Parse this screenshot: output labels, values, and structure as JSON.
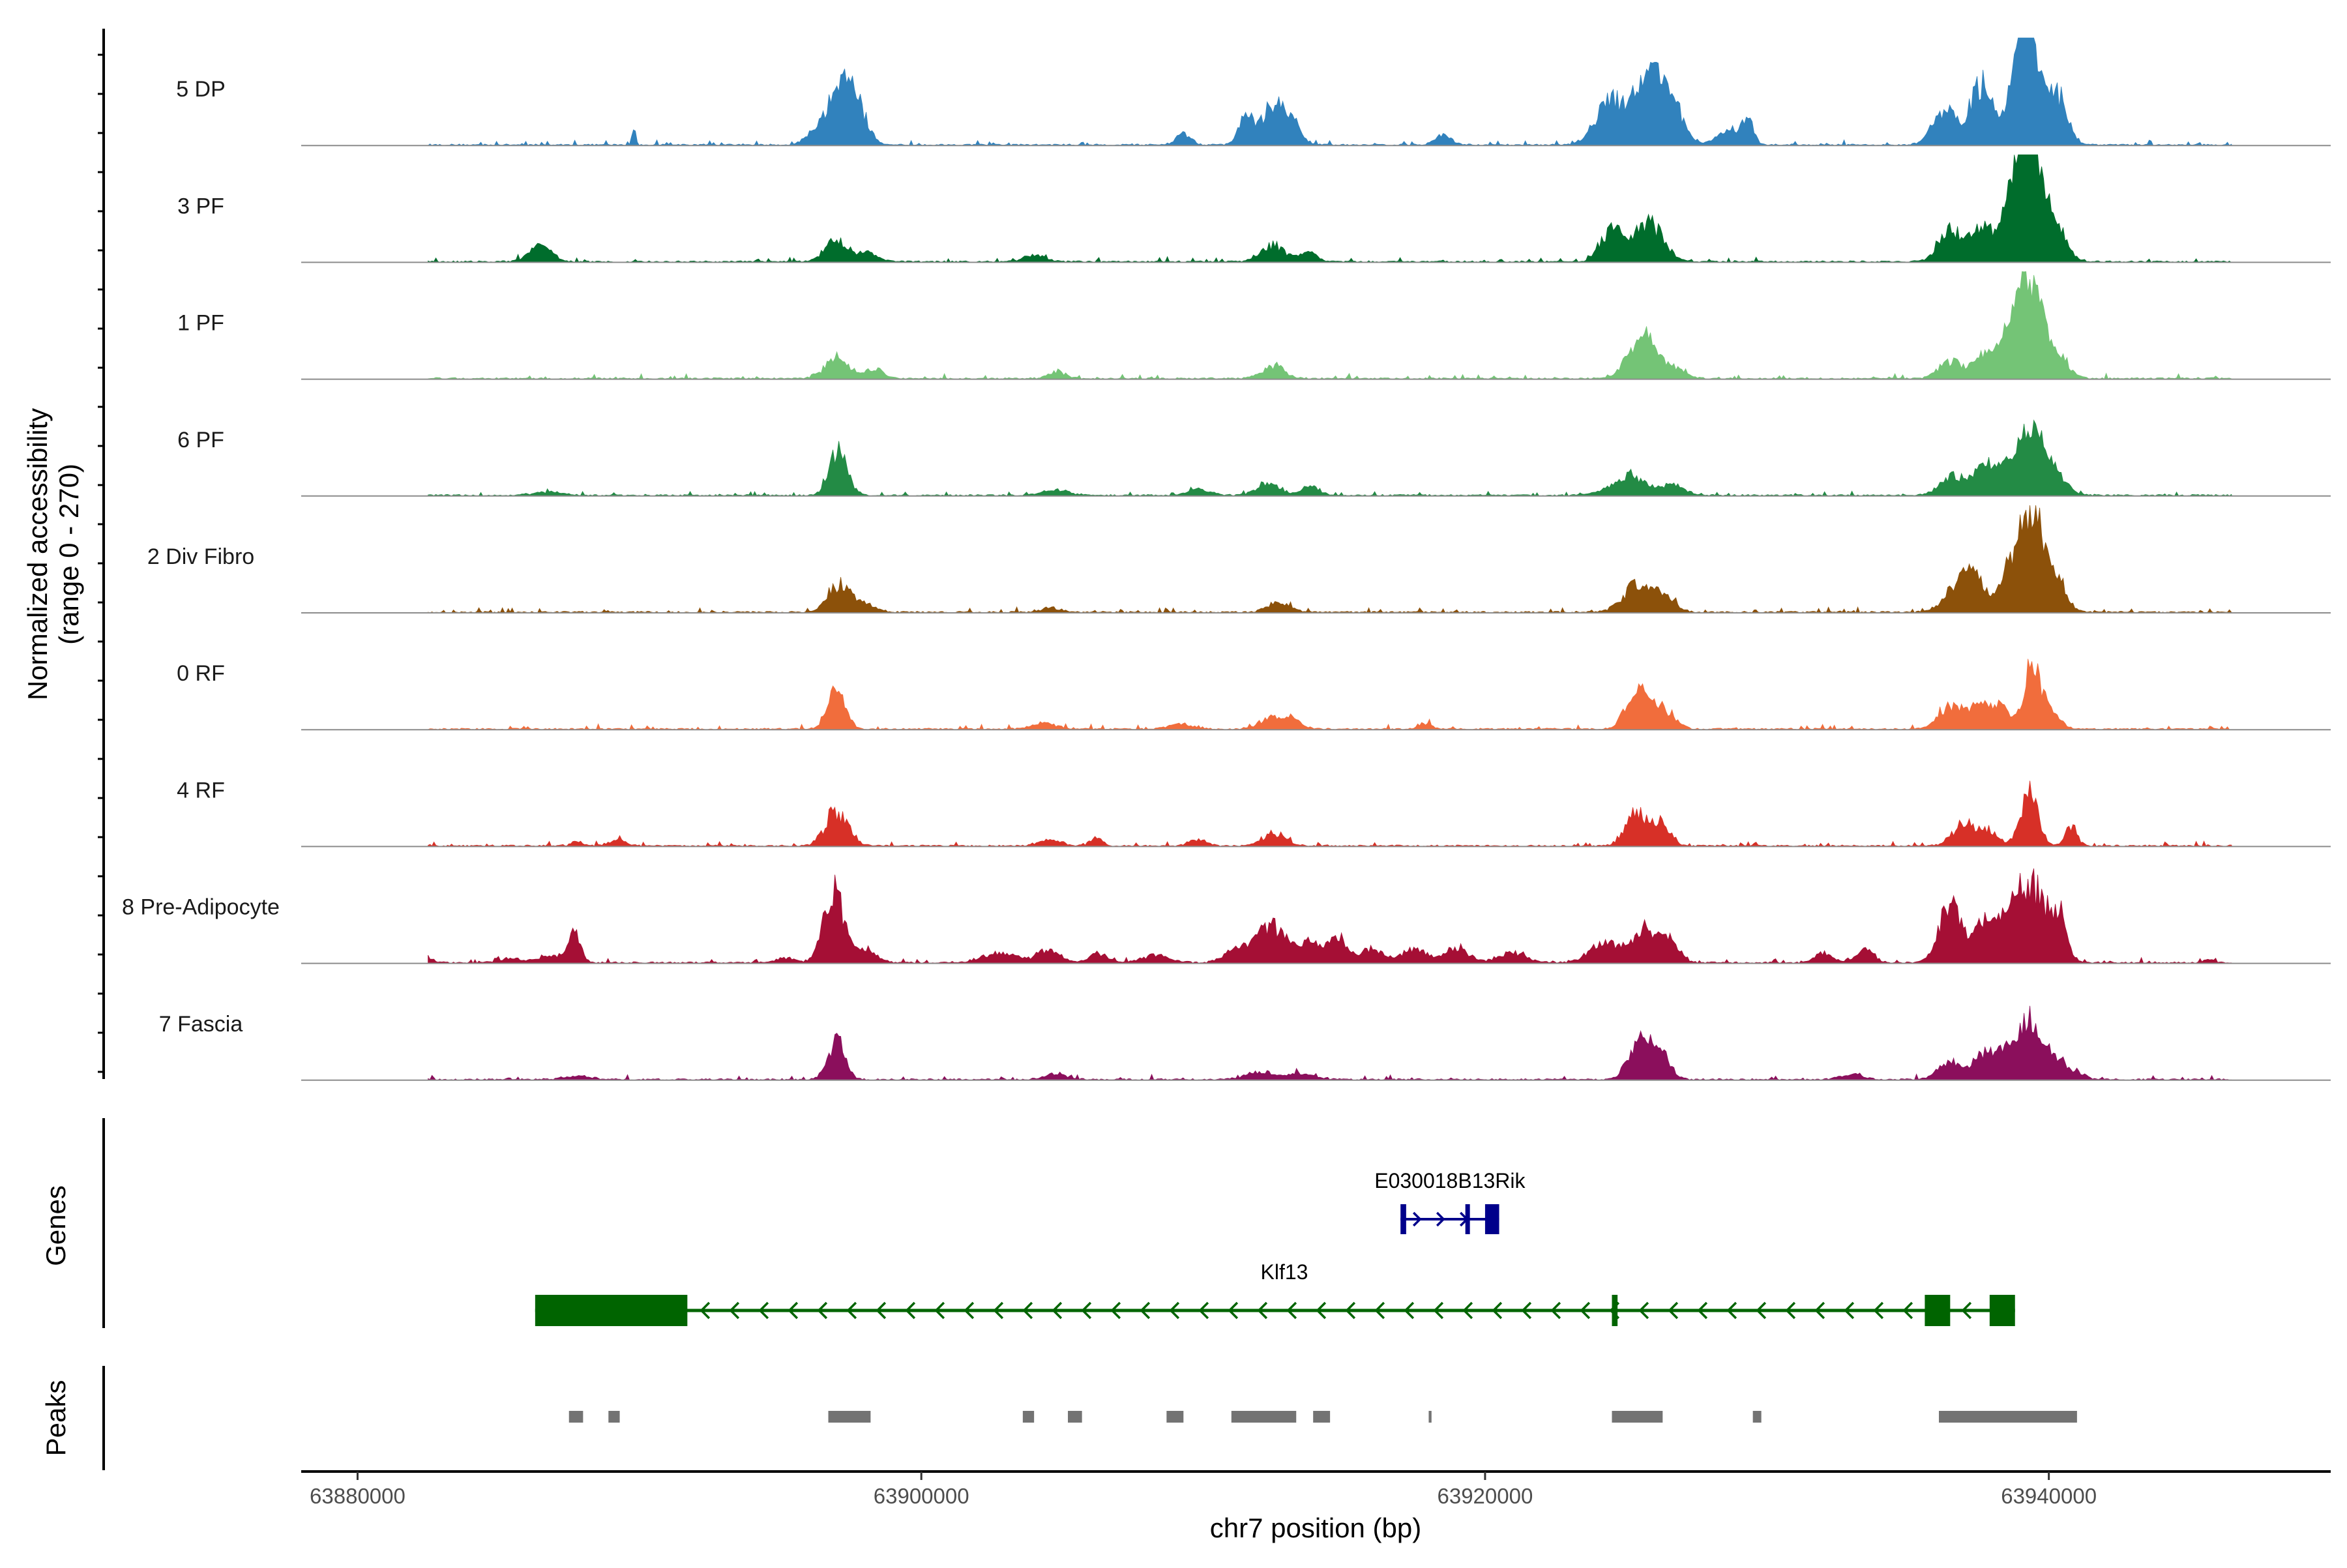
{
  "chart_data": {
    "type": "area",
    "title": "",
    "xlabel": "chr7 position (bp)",
    "ylabel": "Normalized accessibility",
    "ylabel_sub": "(range 0 - 270)",
    "xlim": [
      63878000,
      63950000
    ],
    "ylim": [
      0,
      270
    ],
    "xticks": [
      63880000,
      63900000,
      63920000,
      63940000
    ],
    "xtick_labels": [
      "63880000",
      "63900000",
      "63920000",
      "63940000"
    ],
    "series": [
      {
        "name": "5 DP",
        "color": "#3182bd",
        "peaks": [
          [
            63889800,
            85,
            0.06
          ],
          [
            63896800,
            150,
            0.5
          ],
          [
            63897200,
            120,
            0.25
          ],
          [
            63897700,
            165,
            0.35
          ],
          [
            63909300,
            50,
            0.25
          ],
          [
            63911500,
            110,
            0.25
          ],
          [
            63912500,
            170,
            0.4
          ],
          [
            63913200,
            70,
            0.3
          ],
          [
            63918500,
            40,
            0.3
          ],
          [
            63924400,
            160,
            0.5
          ],
          [
            63925800,
            270,
            0.6
          ],
          [
            63926600,
            110,
            0.4
          ],
          [
            63928600,
            50,
            0.4
          ],
          [
            63929300,
            110,
            0.2
          ],
          [
            63936300,
            140,
            0.4
          ],
          [
            63937600,
            240,
            0.4
          ],
          [
            63939000,
            230,
            0.4
          ],
          [
            63939300,
            340,
            0.4
          ],
          [
            63940300,
            200,
            0.35
          ]
        ]
      },
      {
        "name": "3 PF",
        "color": "#006d2c",
        "peaks": [
          [
            63886500,
            60,
            0.4
          ],
          [
            63897000,
            90,
            0.4
          ],
          [
            63898200,
            35,
            0.3
          ],
          [
            63904000,
            25,
            0.4
          ],
          [
            63912500,
            70,
            0.4
          ],
          [
            63913700,
            40,
            0.3
          ],
          [
            63924500,
            120,
            0.4
          ],
          [
            63925800,
            160,
            0.5
          ],
          [
            63936500,
            125,
            0.4
          ],
          [
            63937600,
            130,
            0.4
          ],
          [
            63938600,
            110,
            0.4
          ],
          [
            63939000,
            230,
            0.4
          ],
          [
            63939400,
            340,
            0.4
          ],
          [
            63940200,
            130,
            0.4
          ]
        ]
      },
      {
        "name": "1 PF",
        "color": "#74c476",
        "peaks": [
          [
            63897000,
            85,
            0.4
          ],
          [
            63898300,
            40,
            0.3
          ],
          [
            63904800,
            30,
            0.3
          ],
          [
            63912500,
            50,
            0.4
          ],
          [
            63925400,
            140,
            0.4
          ],
          [
            63925900,
            90,
            0.3
          ],
          [
            63926600,
            50,
            0.4
          ],
          [
            63936500,
            70,
            0.4
          ],
          [
            63937700,
            90,
            0.4
          ],
          [
            63938500,
            100,
            0.4
          ],
          [
            63939000,
            170,
            0.4
          ],
          [
            63939400,
            280,
            0.4
          ],
          [
            63940200,
            100,
            0.4
          ]
        ]
      },
      {
        "name": "6 PF",
        "color": "#238b45",
        "peaks": [
          [
            63886800,
            15,
            0.5
          ],
          [
            63897000,
            130,
            0.3
          ],
          [
            63897200,
            70,
            0.3
          ],
          [
            63904800,
            20,
            0.5
          ],
          [
            63909800,
            25,
            0.4
          ],
          [
            63912300,
            50,
            0.4
          ],
          [
            63913800,
            40,
            0.3
          ],
          [
            63925100,
            80,
            0.6
          ],
          [
            63926700,
            40,
            0.4
          ],
          [
            63936500,
            80,
            0.4
          ],
          [
            63937700,
            120,
            0.4
          ],
          [
            63938600,
            100,
            0.4
          ],
          [
            63939400,
            250,
            0.4
          ],
          [
            63940200,
            90,
            0.4
          ]
        ]
      },
      {
        "name": "2 Div Fibro",
        "color": "#8c510a",
        "peaks": [
          [
            63897100,
            110,
            0.4
          ],
          [
            63898000,
            30,
            0.4
          ],
          [
            63904600,
            20,
            0.3
          ],
          [
            63912700,
            40,
            0.4
          ],
          [
            63925400,
            110,
            0.5
          ],
          [
            63926300,
            60,
            0.4
          ],
          [
            63936600,
            80,
            0.4
          ],
          [
            63937300,
            150,
            0.4
          ],
          [
            63938700,
            170,
            0.4
          ],
          [
            63939400,
            310,
            0.4
          ],
          [
            63940100,
            170,
            0.4
          ]
        ]
      },
      {
        "name": "0 RF",
        "color": "#f16d3c",
        "peaks": [
          [
            63897000,
            170,
            0.3
          ],
          [
            63904400,
            25,
            0.4
          ],
          [
            63909200,
            20,
            0.4
          ],
          [
            63912400,
            45,
            0.4
          ],
          [
            63913200,
            35,
            0.3
          ],
          [
            63917900,
            25,
            0.2
          ],
          [
            63925400,
            150,
            0.4
          ],
          [
            63926300,
            80,
            0.4
          ],
          [
            63936500,
            90,
            0.4
          ],
          [
            63937500,
            100,
            0.4
          ],
          [
            63938300,
            80,
            0.3
          ],
          [
            63939400,
            250,
            0.3
          ],
          [
            63940100,
            70,
            0.3
          ]
        ]
      },
      {
        "name": "4 RF",
        "color": "#d73027",
        "peaks": [
          [
            63887800,
            20,
            0.2
          ],
          [
            63889200,
            20,
            0.3
          ],
          [
            63897000,
            140,
            0.4
          ],
          [
            63904600,
            25,
            0.4
          ],
          [
            63906200,
            35,
            0.2
          ],
          [
            63909800,
            30,
            0.3
          ],
          [
            63912500,
            50,
            0.4
          ],
          [
            63925400,
            130,
            0.4
          ],
          [
            63926300,
            80,
            0.3
          ],
          [
            63937000,
            90,
            0.4
          ],
          [
            63937900,
            60,
            0.3
          ],
          [
            63939300,
            220,
            0.3
          ],
          [
            63940800,
            80,
            0.2
          ]
        ]
      },
      {
        "name": "8 Pre-Adipocyte",
        "color": "#a50f35",
        "peaks": [
          [
            63882400,
            20,
            0.3
          ],
          [
            63885500,
            15,
            0.4
          ],
          [
            63887000,
            30,
            0.5
          ],
          [
            63887700,
            110,
            0.2
          ],
          [
            63895200,
            20,
            0.3
          ],
          [
            63896900,
            300,
            0.35
          ],
          [
            63898000,
            50,
            0.4
          ],
          [
            63902800,
            40,
            0.6
          ],
          [
            63904500,
            50,
            0.4
          ],
          [
            63906300,
            40,
            0.3
          ],
          [
            63908300,
            30,
            0.5
          ],
          [
            63911200,
            60,
            0.4
          ],
          [
            63912400,
            150,
            0.5
          ],
          [
            63913800,
            80,
            0.5
          ],
          [
            63914800,
            100,
            0.3
          ],
          [
            63916000,
            60,
            0.4
          ],
          [
            63917500,
            60,
            0.4
          ],
          [
            63919000,
            60,
            0.4
          ],
          [
            63921000,
            40,
            0.5
          ],
          [
            63924200,
            80,
            0.5
          ],
          [
            63925700,
            140,
            0.5
          ],
          [
            63926600,
            80,
            0.3
          ],
          [
            63932000,
            40,
            0.3
          ],
          [
            63933500,
            50,
            0.3
          ],
          [
            63936500,
            220,
            0.4
          ],
          [
            63937700,
            150,
            0.4
          ],
          [
            63938600,
            180,
            0.4
          ],
          [
            63939400,
            300,
            0.4
          ],
          [
            63940300,
            210,
            0.3
          ],
          [
            63945700,
            15,
            0.2
          ]
        ]
      },
      {
        "name": "7 Fascia",
        "color": "#8b0f5c",
        "peaks": [
          [
            63887800,
            15,
            0.5
          ],
          [
            63897000,
            155,
            0.3
          ],
          [
            63904800,
            20,
            0.4
          ],
          [
            63912000,
            30,
            0.5
          ],
          [
            63913500,
            25,
            0.5
          ],
          [
            63925500,
            160,
            0.4
          ],
          [
            63926300,
            90,
            0.3
          ],
          [
            63933000,
            20,
            0.4
          ],
          [
            63936500,
            70,
            0.4
          ],
          [
            63937700,
            100,
            0.4
          ],
          [
            63938600,
            120,
            0.4
          ],
          [
            63939400,
            230,
            0.4
          ],
          [
            63940300,
            80,
            0.3
          ],
          [
            63941000,
            25,
            0.3
          ]
        ]
      }
    ],
    "genes": [
      {
        "name": "E030018B13Rik",
        "strand": "+",
        "color": "#00008b",
        "start": 63917000,
        "end": 63920500,
        "exons": [
          [
            63917000,
            63917200
          ],
          [
            63919300,
            63919450
          ],
          [
            63920000,
            63920500
          ]
        ]
      },
      {
        "name": "Klf13",
        "strand": "-",
        "color": "#006400",
        "start": 63886300,
        "end": 63938800,
        "exons": [
          [
            63886300,
            63891700
          ],
          [
            63924500,
            63924700
          ],
          [
            63935600,
            63936500
          ],
          [
            63937900,
            63938800
          ]
        ]
      }
    ],
    "peaks": [
      [
        63887500,
        63888000
      ],
      [
        63888900,
        63889300
      ],
      [
        63896700,
        63898200
      ],
      [
        63903600,
        63904000
      ],
      [
        63905200,
        63905700
      ],
      [
        63908700,
        63909300
      ],
      [
        63911000,
        63913300
      ],
      [
        63913900,
        63914500
      ],
      [
        63918000,
        63918100
      ],
      [
        63924500,
        63926300
      ],
      [
        63929500,
        63929800
      ],
      [
        63936100,
        63941000
      ]
    ],
    "panel_labels": {
      "genes": "Genes",
      "peaks": "Peaks"
    }
  }
}
